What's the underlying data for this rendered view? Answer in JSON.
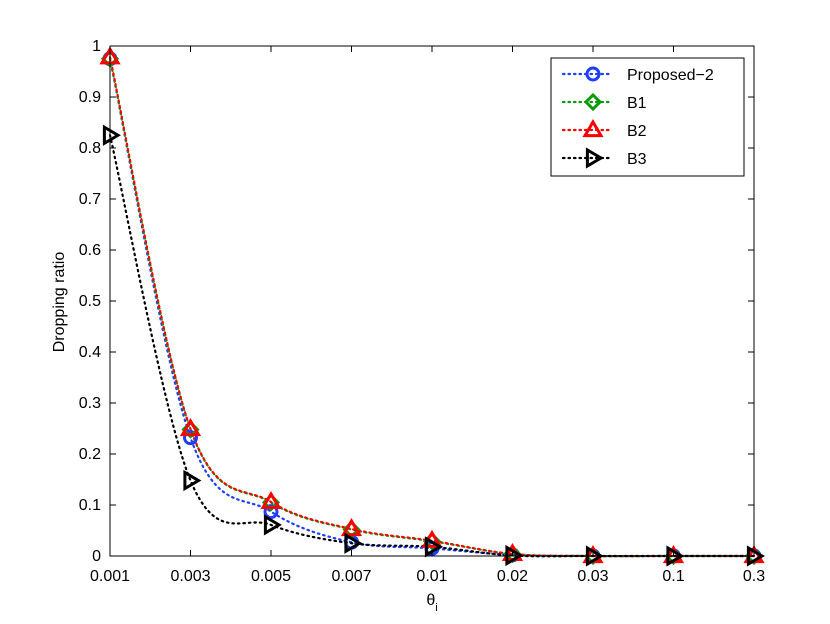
{
  "chart_data": {
    "type": "line",
    "xlabel": "θ",
    "xlabel_sub": "i",
    "ylabel": "Dropping ratio",
    "categories": [
      "0.001",
      "0.003",
      "0.005",
      "0.007",
      "0.01",
      "0.02",
      "0.03",
      "0.1",
      "0.3"
    ],
    "ylim": [
      0,
      1
    ],
    "yticks": [
      "0",
      "0.1",
      "0.2",
      "0.3",
      "0.4",
      "0.5",
      "0.6",
      "0.7",
      "0.8",
      "0.9",
      "1"
    ],
    "grid": false,
    "legend_position": "top-right",
    "series": [
      {
        "name": "Proposed−2",
        "color": "#1f3fff",
        "marker": "circle",
        "values": [
          0.975,
          0.232,
          0.087,
          0.027,
          0.015,
          0.002,
          0.0,
          0.0,
          0.0
        ]
      },
      {
        "name": "B1",
        "color": "#0a9a0a",
        "marker": "diamond",
        "values": [
          0.975,
          0.248,
          0.105,
          0.052,
          0.029,
          0.004,
          0.0,
          0.0,
          0.0
        ]
      },
      {
        "name": "B2",
        "color": "#ff0000",
        "marker": "triangle-up",
        "values": [
          0.978,
          0.249,
          0.106,
          0.053,
          0.03,
          0.004,
          0.0,
          0.0,
          0.0
        ]
      },
      {
        "name": "B3",
        "color": "#000000",
        "marker": "triangle-right",
        "values": [
          0.825,
          0.148,
          0.061,
          0.025,
          0.018,
          0.001,
          0.0,
          0.0,
          0.0
        ]
      }
    ]
  }
}
